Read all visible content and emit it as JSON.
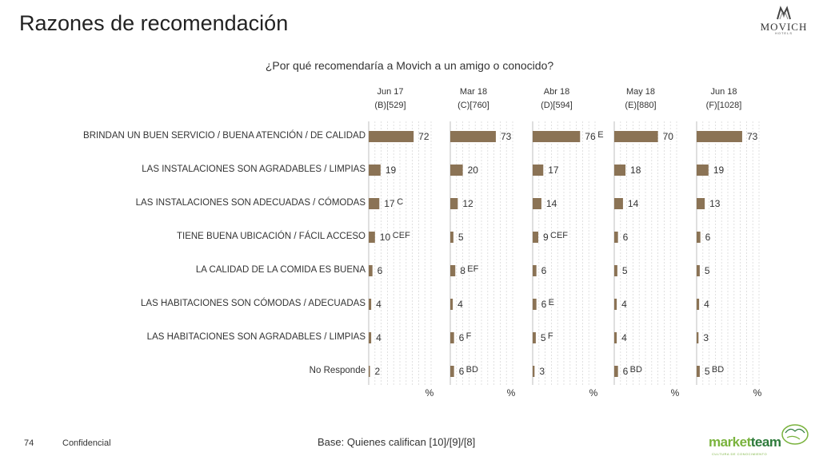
{
  "header": {
    "title": "Razones de recomendación",
    "logo_word": "MOVICH",
    "logo_sub": "HOTELS"
  },
  "chart_data": {
    "type": "bar",
    "title": "¿Por qué recomendaría a Movich a un amigo o conocido?",
    "unit_label": "%",
    "categories": [
      "BRINDAN UN BUEN SERVICIO / BUENA ATENCIÓN / DE CALIDAD",
      "LAS INSTALACIONES SON AGRADABLES / LIMPIAS",
      "LAS INSTALACIONES SON ADECUADAS / CÓMODAS",
      "TIENE BUENA UBICACIÓN / FÁCIL ACCESO",
      "LA CALIDAD DE LA COMIDA ES BUENA",
      "LAS HABITACIONES SON CÓMODAS / ADECUADAS",
      "LAS HABITACIONES SON AGRADABLES / LIMPIAS",
      "No Responde"
    ],
    "series": [
      {
        "name": "Jun 17",
        "base": "(B)[529]",
        "values": [
          72,
          19,
          17,
          10,
          6,
          4,
          4,
          2
        ],
        "sig": [
          "",
          "",
          "C",
          "CEF",
          "",
          "",
          "",
          ""
        ]
      },
      {
        "name": "Mar 18",
        "base": "(C)[760]",
        "values": [
          73,
          20,
          12,
          5,
          8,
          4,
          6,
          6
        ],
        "sig": [
          "",
          "",
          "",
          "",
          "EF",
          "",
          "F",
          "BD"
        ]
      },
      {
        "name": "Abr 18",
        "base": "(D)[594]",
        "values": [
          76,
          17,
          14,
          9,
          6,
          6,
          5,
          3
        ],
        "sig": [
          "E",
          "",
          "",
          "CEF",
          "",
          "E",
          "F",
          ""
        ]
      },
      {
        "name": "May 18",
        "base": "(E)[880]",
        "values": [
          70,
          18,
          14,
          6,
          5,
          4,
          4,
          6
        ],
        "sig": [
          "",
          "",
          "",
          "",
          "",
          "",
          "",
          "BD"
        ]
      },
      {
        "name": "Jun 18",
        "base": "(F)[1028]",
        "values": [
          73,
          19,
          13,
          6,
          5,
          4,
          3,
          5
        ],
        "sig": [
          "",
          "",
          "",
          "",
          "",
          "",
          "",
          "BD"
        ]
      }
    ],
    "xlim": [
      0,
      100
    ],
    "bar_color": "#8b7355",
    "grid": true
  },
  "footer": {
    "page": "74",
    "confidential": "Confidencial",
    "base": "Base: Quienes califican [10]/[9]/[8]",
    "brand_market": "market",
    "brand_team": "team",
    "brand_sub": "CULTURA DE CONOCIMIENTO"
  }
}
